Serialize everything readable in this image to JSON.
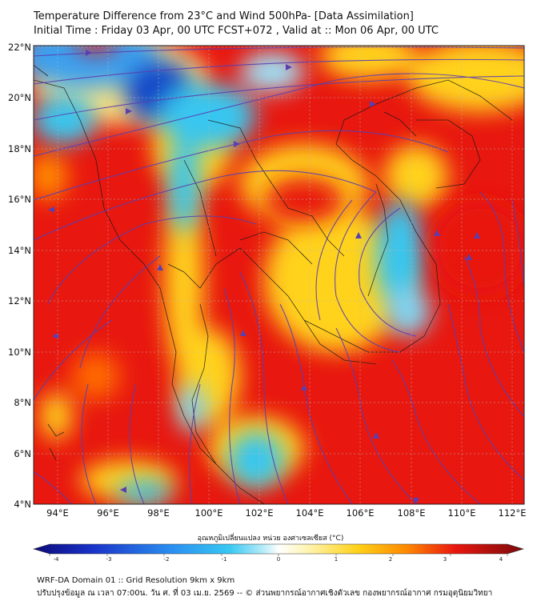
{
  "title": {
    "line1": "Temperature Difference from 23°C and Wind 500hPa- [Data Assimilation]",
    "line2": "Initial Time : Friday 03 Apr, 00 UTC FCST+072 , Valid at ::  Mon 06 Apr, 00 UTC"
  },
  "axes": {
    "lat_labels": [
      "22°N",
      "20°N",
      "18°N",
      "16°N",
      "14°N",
      "12°N",
      "10°N",
      "8°N",
      "6°N",
      "4°N"
    ],
    "lon_labels": [
      "94°E",
      "96°E",
      "98°E",
      "100°E",
      "102°E",
      "104°E",
      "106°E",
      "108°E",
      "110°E",
      "112°E"
    ],
    "lon_range": [
      93,
      112.5
    ],
    "lat_range": [
      4,
      22.2
    ]
  },
  "colorbar": {
    "title": "อุณหภูมิเปลี่ยนแปลง หน่วย องศาเซลเซียส (°C)",
    "ticks": [
      "-4",
      "-3",
      "-2",
      "-1",
      "0",
      "1",
      "2",
      "3",
      "4"
    ],
    "range": [
      -4,
      4
    ]
  },
  "footer": {
    "line1": "WRF-DA Domain 01 :: Grid Resolution 9km x 9km",
    "line2": "ปรับปรุงข้อมูล ณ เวลา 07:00น. วัน ศ. ที่ 03 เม.ย. 2569 -- © ส่วนพยากรณ์อากาศเชิงตัวเลข กองพยากรณ์อากาศ กรมอุตุนิยมวิทยา"
  },
  "colors": {
    "hot": "#e8170f",
    "warm": "#ff6a00",
    "mild": "#ffd21a",
    "neutral": "#fff9c8",
    "cool": "#39c6f0",
    "cold": "#1846c8",
    "streamline": "#5a3fb0"
  }
}
